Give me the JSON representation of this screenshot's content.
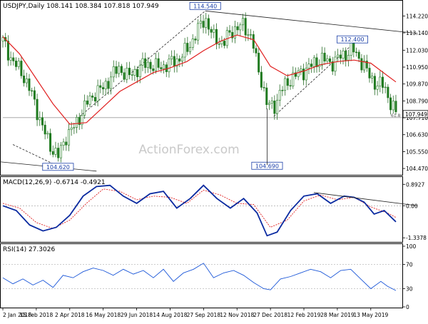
{
  "header": {
    "symbol_line": "USDJPY,Daily 108.141 108.384 107.818 107.949",
    "macd_label": "MACD(12,26,9) -0.6714 -0.4921",
    "rsi_label": "RSI(14) 27.3026",
    "watermark": "ActionForex.com"
  },
  "chart_data": [
    {
      "type": "candlestick",
      "name": "price",
      "yticks": [
        "114.220",
        "113.140",
        "112.030",
        "110.950",
        "109.870",
        "108.790",
        "107.710",
        "106.630",
        "105.550",
        "104.470"
      ],
      "ylim": [
        104.2,
        114.6
      ],
      "current_price": "107.949",
      "xlabels": [
        "2 Jan 2018",
        "15 Feb 2018",
        "2 Apr 2018",
        "16 May 2018",
        "29 Jun 2018",
        "14 Aug 2018",
        "27 Sep 2018",
        "12 Nov 2018",
        "27 Dec 2018",
        "12 Feb 2019",
        "28 Mar 2019",
        "13 May 2019"
      ],
      "annotations": [
        {
          "label": "114.540",
          "value": 114.54,
          "date_index": 6.05
        },
        {
          "label": "104.620",
          "value": 104.62,
          "date_index": 1.65
        },
        {
          "label": "104.690",
          "value": 104.69,
          "date_index": 7.9
        },
        {
          "label": "112.400",
          "value": 112.4,
          "date_index": 10.45
        }
      ],
      "fib_label": "61.8",
      "fib_level": 107.72,
      "close_series": [
        {
          "t": 0.0,
          "v": 112.6
        },
        {
          "t": 0.3,
          "v": 111.3
        },
        {
          "t": 0.6,
          "v": 110.5
        },
        {
          "t": 0.9,
          "v": 109.0
        },
        {
          "t": 1.2,
          "v": 107.0
        },
        {
          "t": 1.4,
          "v": 106.0
        },
        {
          "t": 1.65,
          "v": 105.2
        },
        {
          "t": 1.9,
          "v": 106.6
        },
        {
          "t": 2.1,
          "v": 107.0
        },
        {
          "t": 2.3,
          "v": 107.8
        },
        {
          "t": 2.5,
          "v": 108.6
        },
        {
          "t": 2.75,
          "v": 109.3
        },
        {
          "t": 3.0,
          "v": 109.6
        },
        {
          "t": 3.25,
          "v": 110.4
        },
        {
          "t": 3.5,
          "v": 110.9
        },
        {
          "t": 3.75,
          "v": 110.3
        },
        {
          "t": 4.0,
          "v": 110.8
        },
        {
          "t": 4.3,
          "v": 111.2
        },
        {
          "t": 4.6,
          "v": 110.9
        },
        {
          "t": 4.9,
          "v": 111.1
        },
        {
          "t": 5.2,
          "v": 111.4
        },
        {
          "t": 5.5,
          "v": 112.0
        },
        {
          "t": 5.8,
          "v": 113.2
        },
        {
          "t": 6.05,
          "v": 114.1
        },
        {
          "t": 6.3,
          "v": 112.8
        },
        {
          "t": 6.6,
          "v": 112.5
        },
        {
          "t": 6.9,
          "v": 113.4
        },
        {
          "t": 7.2,
          "v": 113.6
        },
        {
          "t": 7.45,
          "v": 112.8
        },
        {
          "t": 7.6,
          "v": 111.0
        },
        {
          "t": 7.75,
          "v": 110.0
        },
        {
          "t": 7.9,
          "v": 108.5
        },
        {
          "t": 8.1,
          "v": 108.4
        },
        {
          "t": 8.3,
          "v": 109.4
        },
        {
          "t": 8.6,
          "v": 110.2
        },
        {
          "t": 8.9,
          "v": 110.6
        },
        {
          "t": 9.2,
          "v": 111.0
        },
        {
          "t": 9.5,
          "v": 111.5
        },
        {
          "t": 9.8,
          "v": 111.2
        },
        {
          "t": 10.1,
          "v": 111.6
        },
        {
          "t": 10.45,
          "v": 112.1
        },
        {
          "t": 10.7,
          "v": 111.4
        },
        {
          "t": 10.95,
          "v": 110.4
        },
        {
          "t": 11.2,
          "v": 109.8
        },
        {
          "t": 11.4,
          "v": 109.8
        },
        {
          "t": 11.6,
          "v": 108.6
        },
        {
          "t": 11.75,
          "v": 107.95
        }
      ],
      "ma_series": [
        {
          "t": 0.0,
          "v": 112.9
        },
        {
          "t": 0.5,
          "v": 111.8
        },
        {
          "t": 1.0,
          "v": 110.2
        },
        {
          "t": 1.5,
          "v": 108.6
        },
        {
          "t": 2.0,
          "v": 107.3
        },
        {
          "t": 2.5,
          "v": 107.4
        },
        {
          "t": 3.0,
          "v": 108.4
        },
        {
          "t": 3.5,
          "v": 109.4
        },
        {
          "t": 4.0,
          "v": 110.0
        },
        {
          "t": 4.5,
          "v": 110.6
        },
        {
          "t": 5.0,
          "v": 110.9
        },
        {
          "t": 5.5,
          "v": 111.3
        },
        {
          "t": 6.0,
          "v": 112.0
        },
        {
          "t": 6.5,
          "v": 112.6
        },
        {
          "t": 7.0,
          "v": 113.0
        },
        {
          "t": 7.5,
          "v": 112.7
        },
        {
          "t": 8.0,
          "v": 111.0
        },
        {
          "t": 8.5,
          "v": 110.4
        },
        {
          "t": 9.0,
          "v": 110.7
        },
        {
          "t": 9.5,
          "v": 111.1
        },
        {
          "t": 10.0,
          "v": 111.3
        },
        {
          "t": 10.5,
          "v": 111.4
        },
        {
          "t": 11.0,
          "v": 111.2
        },
        {
          "t": 11.5,
          "v": 110.4
        },
        {
          "t": 11.75,
          "v": 110.0
        }
      ],
      "trendlines": [
        {
          "t1": 2.3,
          "v1": 107.8,
          "t2": 6.05,
          "v2": 114.54,
          "style": "dashed"
        },
        {
          "t1": 0.3,
          "v1": 106.0,
          "t2": 1.65,
          "v2": 104.62,
          "style": "dashed"
        },
        {
          "t1": 8.1,
          "v1": 107.8,
          "t2": 10.45,
          "v2": 112.4,
          "style": "dashed"
        },
        {
          "t1": 6.05,
          "v1": 114.54,
          "t2": 12.4,
          "v2": 113.1,
          "style": "solid"
        },
        {
          "t1": -0.1,
          "v1": 104.9,
          "t2": 2.8,
          "v2": 104.3,
          "style": "solid"
        }
      ]
    },
    {
      "type": "line",
      "name": "macd",
      "yticks": [
        "0.8927",
        "0.00",
        "-1.3378"
      ],
      "ylim": [
        -1.45,
        1.05
      ],
      "zero_level": 0.0,
      "macd_series": [
        {
          "t": 0.0,
          "v": 0.0
        },
        {
          "t": 0.4,
          "v": -0.2
        },
        {
          "t": 0.8,
          "v": -0.8
        },
        {
          "t": 1.2,
          "v": -1.05
        },
        {
          "t": 1.6,
          "v": -0.9
        },
        {
          "t": 2.0,
          "v": -0.4
        },
        {
          "t": 2.4,
          "v": 0.4
        },
        {
          "t": 2.8,
          "v": 0.8
        },
        {
          "t": 3.2,
          "v": 0.85
        },
        {
          "t": 3.6,
          "v": 0.4
        },
        {
          "t": 4.0,
          "v": 0.1
        },
        {
          "t": 4.4,
          "v": 0.5
        },
        {
          "t": 4.8,
          "v": 0.6
        },
        {
          "t": 5.2,
          "v": -0.1
        },
        {
          "t": 5.6,
          "v": 0.3
        },
        {
          "t": 6.0,
          "v": 0.85
        },
        {
          "t": 6.4,
          "v": 0.3
        },
        {
          "t": 6.8,
          "v": -0.1
        },
        {
          "t": 7.2,
          "v": 0.3
        },
        {
          "t": 7.6,
          "v": -0.3
        },
        {
          "t": 7.9,
          "v": -1.25
        },
        {
          "t": 8.2,
          "v": -1.1
        },
        {
          "t": 8.6,
          "v": -0.2
        },
        {
          "t": 9.0,
          "v": 0.4
        },
        {
          "t": 9.4,
          "v": 0.5
        },
        {
          "t": 9.8,
          "v": 0.1
        },
        {
          "t": 10.2,
          "v": 0.4
        },
        {
          "t": 10.5,
          "v": 0.35
        },
        {
          "t": 10.8,
          "v": 0.15
        },
        {
          "t": 11.1,
          "v": -0.35
        },
        {
          "t": 11.4,
          "v": -0.2
        },
        {
          "t": 11.75,
          "v": -0.67
        }
      ],
      "signal_series": [
        {
          "t": 0.0,
          "v": 0.1
        },
        {
          "t": 0.5,
          "v": -0.1
        },
        {
          "t": 1.0,
          "v": -0.7
        },
        {
          "t": 1.5,
          "v": -0.95
        },
        {
          "t": 2.0,
          "v": -0.6
        },
        {
          "t": 2.5,
          "v": 0.1
        },
        {
          "t": 3.0,
          "v": 0.7
        },
        {
          "t": 3.5,
          "v": 0.6
        },
        {
          "t": 4.0,
          "v": 0.25
        },
        {
          "t": 4.5,
          "v": 0.4
        },
        {
          "t": 5.0,
          "v": 0.35
        },
        {
          "t": 5.5,
          "v": 0.1
        },
        {
          "t": 6.0,
          "v": 0.65
        },
        {
          "t": 6.5,
          "v": 0.45
        },
        {
          "t": 7.0,
          "v": 0.1
        },
        {
          "t": 7.5,
          "v": 0.05
        },
        {
          "t": 8.0,
          "v": -0.9
        },
        {
          "t": 8.5,
          "v": -0.6
        },
        {
          "t": 9.0,
          "v": 0.2
        },
        {
          "t": 9.5,
          "v": 0.45
        },
        {
          "t": 10.0,
          "v": 0.25
        },
        {
          "t": 10.5,
          "v": 0.35
        },
        {
          "t": 11.0,
          "v": -0.05
        },
        {
          "t": 11.5,
          "v": -0.3
        },
        {
          "t": 11.75,
          "v": -0.49
        }
      ],
      "trendline": {
        "t1": 9.3,
        "v1": 0.55,
        "t2": 12.4,
        "v2": 0.0
      }
    },
    {
      "type": "line",
      "name": "rsi",
      "yticks": [
        "100",
        "70",
        "30",
        "0"
      ],
      "ylim": [
        0,
        100
      ],
      "levels": [
        70,
        30
      ],
      "rsi_series": [
        {
          "t": 0.0,
          "v": 48
        },
        {
          "t": 0.3,
          "v": 38
        },
        {
          "t": 0.6,
          "v": 46
        },
        {
          "t": 0.9,
          "v": 36
        },
        {
          "t": 1.2,
          "v": 44
        },
        {
          "t": 1.5,
          "v": 32
        },
        {
          "t": 1.8,
          "v": 52
        },
        {
          "t": 2.1,
          "v": 48
        },
        {
          "t": 2.4,
          "v": 58
        },
        {
          "t": 2.7,
          "v": 64
        },
        {
          "t": 3.0,
          "v": 60
        },
        {
          "t": 3.3,
          "v": 52
        },
        {
          "t": 3.6,
          "v": 62
        },
        {
          "t": 3.9,
          "v": 54
        },
        {
          "t": 4.2,
          "v": 60
        },
        {
          "t": 4.5,
          "v": 48
        },
        {
          "t": 4.8,
          "v": 62
        },
        {
          "t": 5.1,
          "v": 42
        },
        {
          "t": 5.4,
          "v": 56
        },
        {
          "t": 5.7,
          "v": 62
        },
        {
          "t": 6.0,
          "v": 72
        },
        {
          "t": 6.3,
          "v": 48
        },
        {
          "t": 6.6,
          "v": 56
        },
        {
          "t": 6.9,
          "v": 60
        },
        {
          "t": 7.2,
          "v": 52
        },
        {
          "t": 7.5,
          "v": 40
        },
        {
          "t": 7.8,
          "v": 30
        },
        {
          "t": 8.0,
          "v": 28
        },
        {
          "t": 8.3,
          "v": 46
        },
        {
          "t": 8.6,
          "v": 50
        },
        {
          "t": 8.9,
          "v": 56
        },
        {
          "t": 9.2,
          "v": 62
        },
        {
          "t": 9.5,
          "v": 58
        },
        {
          "t": 9.8,
          "v": 48
        },
        {
          "t": 10.1,
          "v": 60
        },
        {
          "t": 10.4,
          "v": 62
        },
        {
          "t": 10.7,
          "v": 46
        },
        {
          "t": 11.0,
          "v": 30
        },
        {
          "t": 11.3,
          "v": 42
        },
        {
          "t": 11.5,
          "v": 34
        },
        {
          "t": 11.75,
          "v": 27
        }
      ]
    }
  ]
}
